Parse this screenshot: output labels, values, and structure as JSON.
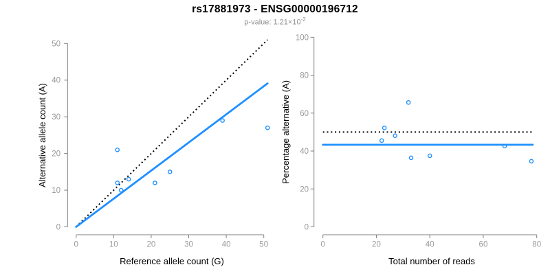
{
  "header": {
    "title": "rs17881973 - ENSG00000196712",
    "pvalue_text": "p-value: 1.21×10",
    "pvalue_exponent": "-2"
  },
  "colors": {
    "accent_blue": "#1E90FF",
    "dotted_line": "#000000",
    "axis": "#808080",
    "tick_label": "#999999",
    "axis_title": "#000000",
    "title": "#000000",
    "subtitle": "#8f8f8f"
  },
  "chart_data": [
    {
      "type": "scatter",
      "title": "rs17881973 - ENSG00000196712",
      "xlabel": "Reference allele count (G)",
      "ylabel": "Alternative allele count (A)",
      "xlim": [
        0,
        50
      ],
      "ylim": [
        0,
        50
      ],
      "xticks": [
        0,
        10,
        20,
        30,
        40,
        50
      ],
      "yticks": [
        0,
        10,
        20,
        30,
        40,
        50
      ],
      "grid": false,
      "point_style": "open-circle",
      "points": [
        {
          "x": 11,
          "y": 21
        },
        {
          "x": 11,
          "y": 12
        },
        {
          "x": 12,
          "y": 10
        },
        {
          "x": 14,
          "y": 13
        },
        {
          "x": 21,
          "y": 12
        },
        {
          "x": 25,
          "y": 15
        },
        {
          "x": 39,
          "y": 29
        },
        {
          "x": 51,
          "y": 27
        }
      ],
      "lines": [
        {
          "name": "identity-line",
          "style": "dotted",
          "color": "#000000",
          "x1": 0,
          "y1": 0,
          "x2": 51,
          "y2": 51
        },
        {
          "name": "regression-line",
          "style": "solid",
          "color": "#1E90FF",
          "x1": 0,
          "y1": 0,
          "x2": 51,
          "y2": 39.1
        }
      ]
    },
    {
      "type": "scatter",
      "title": "rs17881973 - ENSG00000196712",
      "xlabel": "Total number of reads",
      "ylabel": "Percentage alternative (A)",
      "xlim": [
        0,
        80
      ],
      "ylim": [
        0,
        100
      ],
      "xticks": [
        0,
        20,
        40,
        60,
        80
      ],
      "yticks": [
        0,
        20,
        40,
        60,
        80,
        100
      ],
      "grid": false,
      "point_style": "open-circle",
      "points": [
        {
          "x": 32,
          "y": 65.6
        },
        {
          "x": 23,
          "y": 52.2
        },
        {
          "x": 27,
          "y": 48.1
        },
        {
          "x": 22,
          "y": 45.5
        },
        {
          "x": 33,
          "y": 36.4
        },
        {
          "x": 40,
          "y": 37.5
        },
        {
          "x": 68,
          "y": 42.6
        },
        {
          "x": 78,
          "y": 34.6
        }
      ],
      "lines": [
        {
          "name": "fifty-percent-line",
          "style": "dotted",
          "color": "#000000",
          "x1": 0,
          "y1": 50,
          "x2": 78.5,
          "y2": 50
        },
        {
          "name": "mean-percentage-line",
          "style": "solid",
          "color": "#1E90FF",
          "x1": 0,
          "y1": 43.3,
          "x2": 78.5,
          "y2": 43.3
        }
      ]
    }
  ]
}
